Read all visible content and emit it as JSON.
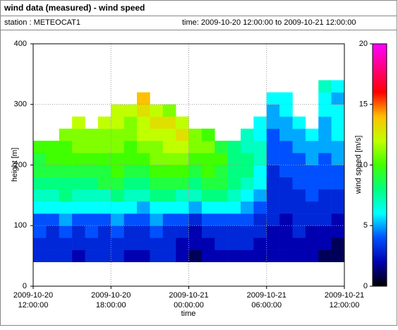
{
  "chart_data": {
    "type": "heatmap",
    "title": "wind data (measured) - wind speed",
    "station": "station : METEOCAT1",
    "time_range": "time: 2009-10-20 12:00:00 to 2009-10-21 12:00:00",
    "x_label": "time",
    "y_label": "height [m]",
    "colorbar_label": "wind speed [m/s]",
    "xbins": [
      "2009-10-20 12:00:00",
      "2009-10-20 13:00:00",
      "2009-10-20 14:00:00",
      "2009-10-20 15:00:00",
      "2009-10-20 16:00:00",
      "2009-10-20 17:00:00",
      "2009-10-20 18:00:00",
      "2009-10-20 19:00:00",
      "2009-10-20 20:00:00",
      "2009-10-20 21:00:00",
      "2009-10-20 22:00:00",
      "2009-10-20 23:00:00",
      "2009-10-21 00:00:00",
      "2009-10-21 01:00:00",
      "2009-10-21 02:00:00",
      "2009-10-21 03:00:00",
      "2009-10-21 04:00:00",
      "2009-10-21 05:00:00",
      "2009-10-21 06:00:00",
      "2009-10-21 07:00:00",
      "2009-10-21 08:00:00",
      "2009-10-21 09:00:00",
      "2009-10-21 10:00:00",
      "2009-10-21 11:00:00",
      "2009-10-21 12:00:00"
    ],
    "ybins": [
      40,
      60,
      80,
      100,
      120,
      140,
      160,
      180,
      200,
      220,
      240,
      260,
      280,
      300,
      320,
      340,
      360
    ],
    "values": [
      [
        3,
        3,
        4,
        4,
        6,
        7,
        8,
        9,
        9,
        10
      ],
      [
        3,
        3,
        3,
        4,
        6,
        7,
        8,
        9,
        10,
        10
      ],
      [
        3,
        3,
        4,
        5,
        6,
        8,
        8,
        9,
        10,
        10,
        11
      ],
      [
        2,
        3,
        3,
        4,
        6,
        7,
        8,
        9,
        10,
        11,
        11,
        12
      ],
      [
        3,
        3,
        4,
        4,
        6,
        7,
        8,
        9,
        10,
        11,
        11
      ],
      [
        3,
        3,
        3,
        4,
        6,
        7,
        9,
        9,
        10,
        11,
        11,
        12
      ],
      [
        3,
        3,
        4,
        5,
        6,
        8,
        9,
        10,
        10,
        11,
        11,
        12,
        12
      ],
      [
        2,
        3,
        3,
        4,
        6,
        7,
        8,
        9,
        10,
        10,
        11,
        11,
        12
      ],
      [
        2,
        3,
        3,
        4,
        5,
        7,
        8,
        9,
        10,
        11,
        12,
        12,
        13,
        14
      ],
      [
        3,
        3,
        4,
        5,
        6,
        8,
        9,
        10,
        11,
        11,
        12,
        13,
        12
      ],
      [
        3,
        3,
        3,
        4,
        6,
        8,
        9,
        10,
        11,
        12,
        12,
        13,
        11
      ],
      [
        2,
        2,
        3,
        4,
        6,
        7,
        9,
        10,
        11,
        12,
        13,
        12
      ],
      [
        1,
        2,
        2,
        3,
        5,
        7,
        8,
        9,
        10,
        11,
        11
      ],
      [
        2,
        2,
        3,
        4,
        6,
        8,
        9,
        10,
        10,
        11,
        10
      ],
      [
        2,
        3,
        3,
        4,
        6,
        8,
        9,
        9,
        10,
        9
      ],
      [
        2,
        3,
        3,
        4,
        6,
        7,
        8,
        8,
        8,
        8
      ],
      [
        2,
        3,
        3,
        4,
        5,
        6,
        7,
        8,
        8,
        7,
        7
      ],
      [
        2,
        2,
        3,
        3,
        4,
        5,
        6,
        6,
        7,
        7,
        6,
        6
      ],
      [
        2,
        2,
        2,
        3,
        3,
        3,
        3,
        3,
        4,
        4,
        4,
        5,
        5,
        6
      ],
      [
        2,
        2,
        2,
        2,
        3,
        3,
        3,
        4,
        4,
        4,
        5,
        5,
        6,
        6
      ],
      [
        2,
        2,
        3,
        3,
        3,
        3,
        4,
        4,
        4,
        5,
        5,
        6
      ],
      [
        2,
        2,
        2,
        3,
        3,
        4,
        4,
        4,
        5,
        5,
        6
      ],
      [
        1,
        2,
        2,
        3,
        3,
        3,
        4,
        4,
        4,
        5,
        5,
        5,
        6,
        6,
        7
      ],
      [
        1,
        1,
        2,
        2,
        3,
        3,
        4,
        4,
        5,
        5,
        6,
        6,
        6,
        5,
        6
      ]
    ],
    "xlim": [
      "2009-10-20 12:00:00",
      "2009-10-21 12:00:00"
    ],
    "xticks": [
      {
        "value": "2009-10-20 12:00:00",
        "label": [
          "2009-10-20",
          "12:00:00"
        ]
      },
      {
        "value": "2009-10-20 18:00:00",
        "label": [
          "2009-10-20",
          "18:00:00"
        ]
      },
      {
        "value": "2009-10-21 00:00:00",
        "label": [
          "2009-10-21",
          "00:00:00"
        ]
      },
      {
        "value": "2009-10-21 06:00:00",
        "label": [
          "2009-10-21",
          "06:00:00"
        ]
      },
      {
        "value": "2009-10-21 12:00:00",
        "label": [
          "2009-10-21",
          "12:00:00"
        ]
      }
    ],
    "ylim": [
      0,
      400
    ],
    "yticks": [
      0,
      100,
      200,
      300,
      400
    ],
    "clim": [
      0,
      20
    ],
    "cticks": [
      0,
      5,
      10,
      15,
      20
    ],
    "colormap": [
      "#000000",
      "#0000b0",
      "#0050ff",
      "#00ffff",
      "#00ff80",
      "#40ff00",
      "#c0ff00",
      "#ffc000",
      "#ff0000",
      "#ff0080",
      "#ff00ff"
    ],
    "grid": true
  }
}
